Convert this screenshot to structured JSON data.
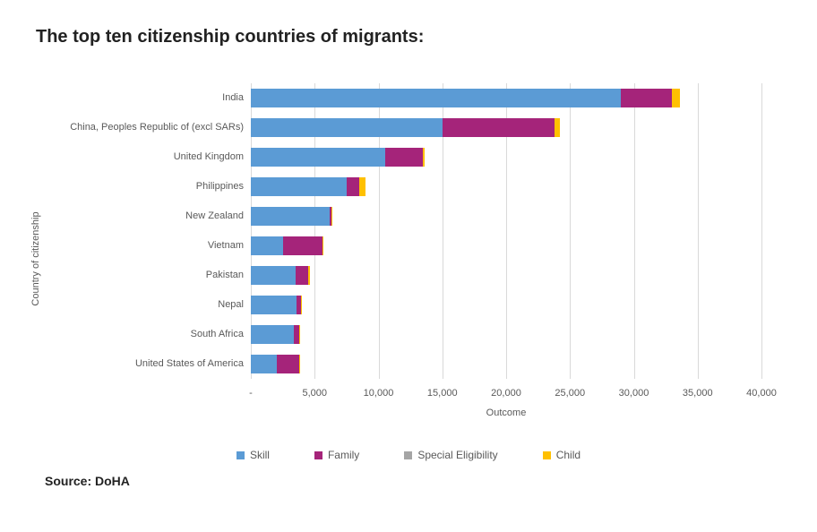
{
  "title": "The top ten citizenship countries of migrants:",
  "source_label": "Source: DoHA",
  "chart": {
    "type": "stacked-horizontal-bar",
    "y_axis_title": "Country of citizenship",
    "x_axis_title": "Outcome",
    "xlim": [
      0,
      40000
    ],
    "x_ticks": [
      0,
      5000,
      10000,
      15000,
      20000,
      25000,
      30000,
      35000,
      40000
    ],
    "x_tick_labels": [
      "-",
      "5,000",
      "10,000",
      "15,000",
      "20,000",
      "25,000",
      "30,000",
      "35,000",
      "40,000"
    ],
    "grid_color": "#d9d9d9",
    "background_color": "#ffffff",
    "label_fontsize": 11,
    "label_color": "#595959",
    "bar_height_ratio": 0.62,
    "categories": [
      "India",
      "China, Peoples Republic of (excl SARs)",
      "United Kingdom",
      "Philippines",
      "New Zealand",
      "Vietnam",
      "Pakistan",
      "Nepal",
      "South Africa",
      "United States of America"
    ],
    "series": [
      {
        "name": "Skill",
        "color": "#5b9bd5",
        "values": [
          29000,
          15000,
          10500,
          7500,
          6200,
          2500,
          3500,
          3600,
          3400,
          2000
        ]
      },
      {
        "name": "Family",
        "color": "#a5247a",
        "values": [
          4000,
          8800,
          3000,
          1000,
          100,
          3100,
          1000,
          300,
          400,
          1800
        ]
      },
      {
        "name": "Special Eligibility",
        "color": "#a5a5a5",
        "values": [
          0,
          0,
          0,
          0,
          0,
          0,
          0,
          0,
          0,
          0
        ]
      },
      {
        "name": "Child",
        "color": "#ffc000",
        "values": [
          600,
          400,
          100,
          500,
          100,
          100,
          100,
          50,
          50,
          50
        ]
      }
    ]
  }
}
